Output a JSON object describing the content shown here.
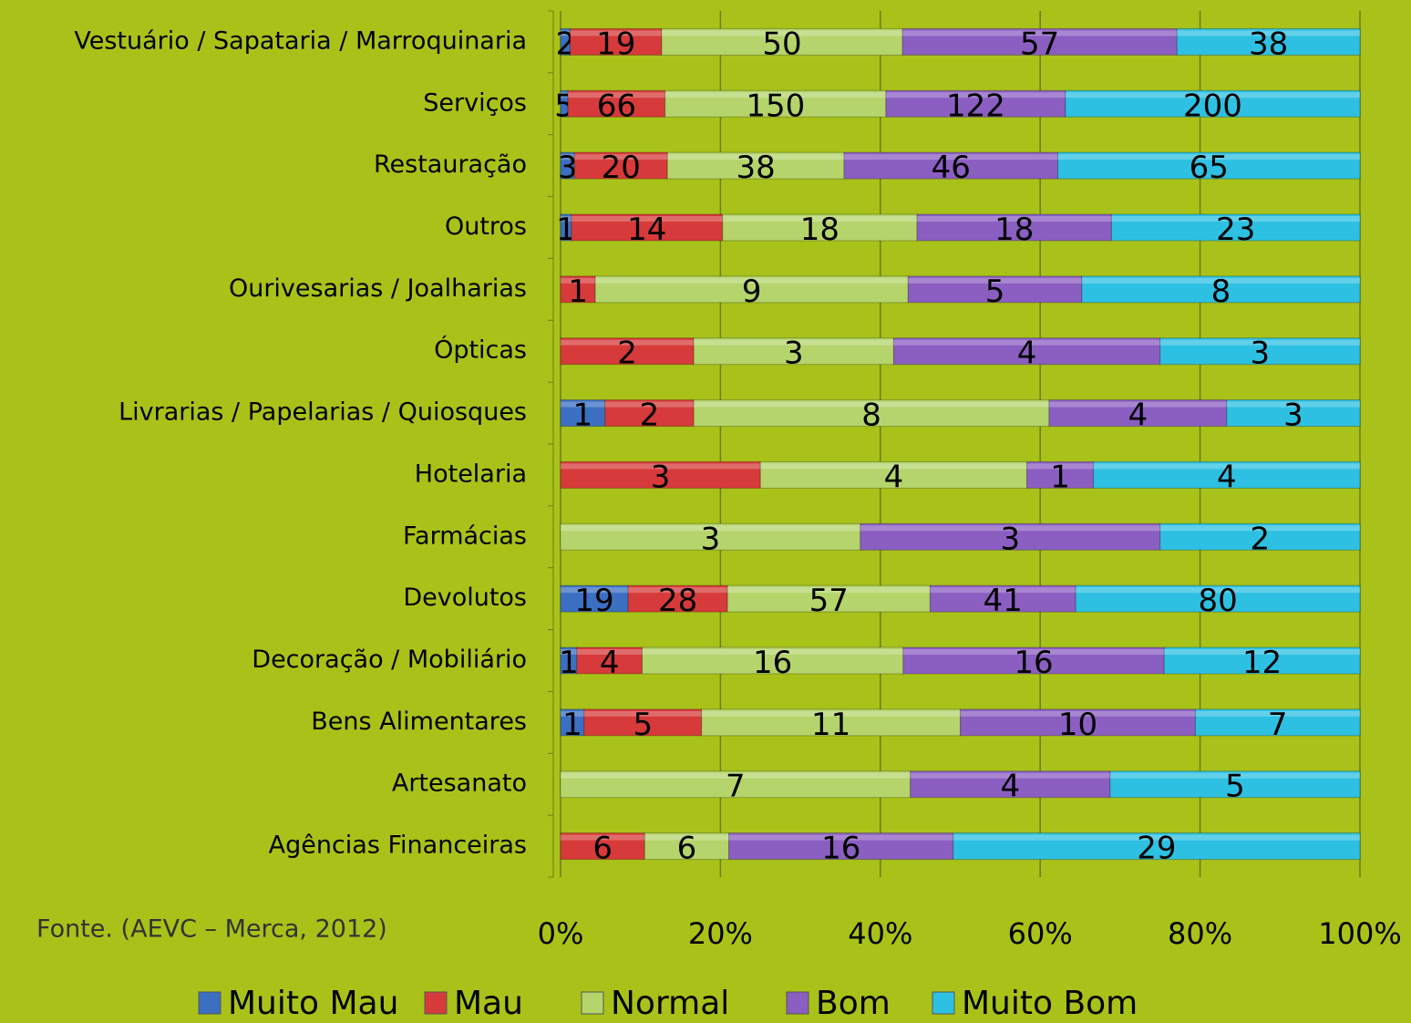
{
  "chart_data": {
    "type": "stacked_bar_horizontal_percent",
    "categories": [
      "Vestuário / Sapataria / Marroquinaria",
      "Serviços",
      "Restauração",
      "Outros",
      "Ourivesarias / Joalharias",
      "Ópticas",
      "Livrarias / Papelarias / Quiosques",
      "Hotelaria",
      "Farmácias",
      "Devolutos",
      "Decoração / Mobiliário",
      "Bens Alimentares",
      "Artesanato",
      "Agências Financeiras"
    ],
    "series": [
      {
        "name": "Muito Mau",
        "color": "#3b6fc2",
        "values": [
          2,
          5,
          3,
          1,
          null,
          null,
          1,
          null,
          null,
          19,
          1,
          1,
          null,
          null
        ]
      },
      {
        "name": "Mau",
        "color": "#d63a3a",
        "values": [
          19,
          66,
          20,
          14,
          1,
          2,
          2,
          3,
          null,
          28,
          4,
          5,
          null,
          6
        ]
      },
      {
        "name": "Normal",
        "color": "#b5d46c",
        "values": [
          50,
          150,
          38,
          18,
          9,
          3,
          8,
          4,
          3,
          57,
          16,
          11,
          7,
          6
        ]
      },
      {
        "name": "Bom",
        "color": "#8b5ec2",
        "values": [
          57,
          122,
          46,
          18,
          5,
          4,
          4,
          1,
          3,
          41,
          16,
          10,
          4,
          16
        ]
      },
      {
        "name": "Muito Bom",
        "color": "#2ec0e2",
        "values": [
          38,
          200,
          65,
          23,
          8,
          3,
          3,
          4,
          2,
          80,
          12,
          7,
          5,
          29
        ]
      }
    ],
    "xlim": [
      0,
      100
    ],
    "xticks": [
      {
        "value": 0,
        "label": "0%"
      },
      {
        "value": 20,
        "label": "20%"
      },
      {
        "value": 40,
        "label": "40%"
      },
      {
        "value": 60,
        "label": "60%"
      },
      {
        "value": 80,
        "label": "80%"
      },
      {
        "value": 100,
        "label": "100%"
      }
    ],
    "grid": true,
    "legend": "bottom",
    "source": "Fonte. (AEVC – Merca, 2012)"
  }
}
